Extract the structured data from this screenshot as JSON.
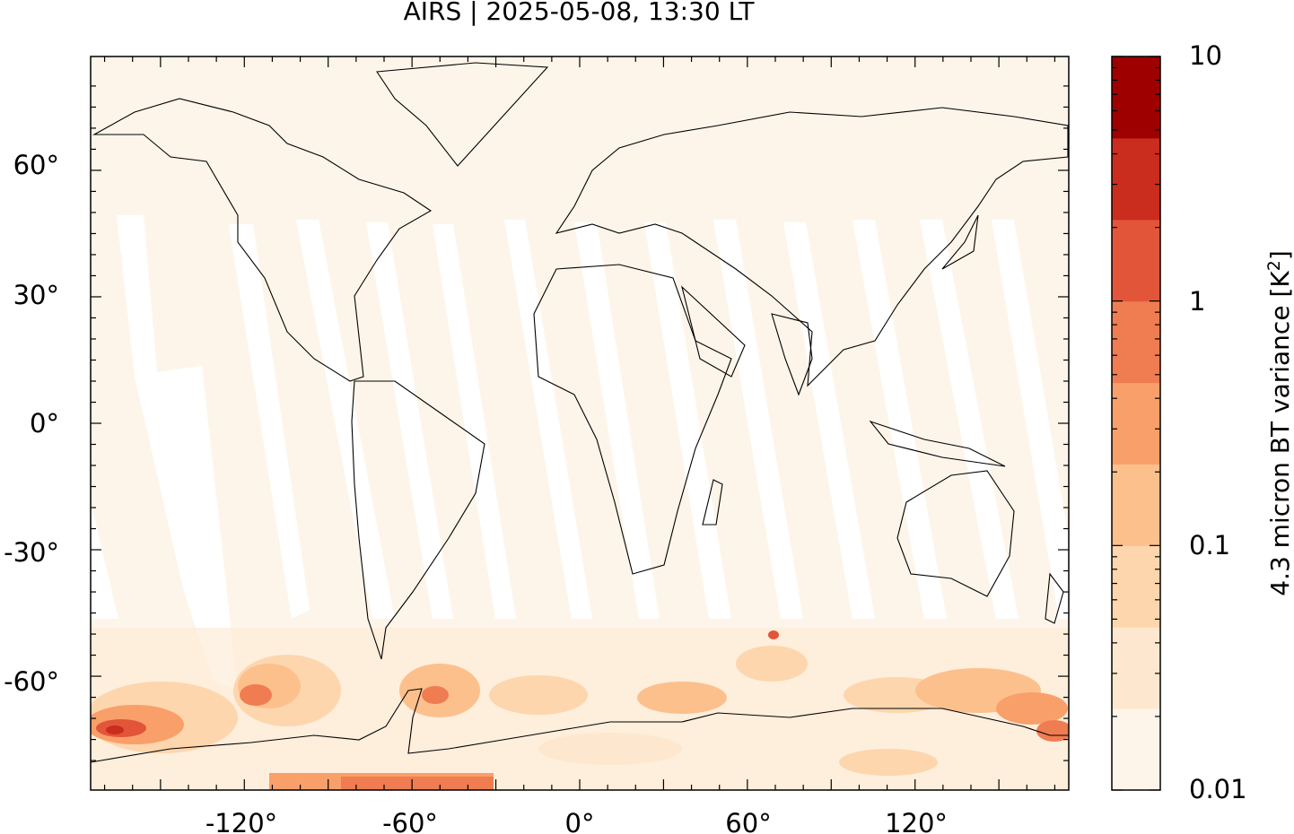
{
  "title": "AIRS | 2025-05-08, 13:30 LT",
  "map": {
    "projection": "equirectangular",
    "lon_range": [
      -175,
      175
    ],
    "lat_range": [
      -87,
      87
    ],
    "x_tick_labels": [
      "-120°",
      "-60°",
      "0°",
      "60°",
      "120°"
    ],
    "y_tick_labels": [
      "60°",
      "30°",
      "0°",
      "-30°",
      "-60°"
    ],
    "background_color": "#fef5ea",
    "swath_gap_color": "#ffffff",
    "coastline_color": "#000000",
    "high_variance_region": "Southern Ocean / Antarctic coast"
  },
  "colorbar": {
    "label": "4.3 micron BT variance [K",
    "label_superscript": "2",
    "label_end": "]",
    "scale": "log",
    "range": [
      0.01,
      10
    ],
    "tick_labels": [
      "10",
      "1",
      "0.1",
      "0.01"
    ],
    "colors": [
      "#fef5ea",
      "#fde8cf",
      "#fdd6ad",
      "#fcc08d",
      "#f99f6a",
      "#f07c51",
      "#e25539",
      "#ca2c1d",
      "#9e0000"
    ]
  }
}
